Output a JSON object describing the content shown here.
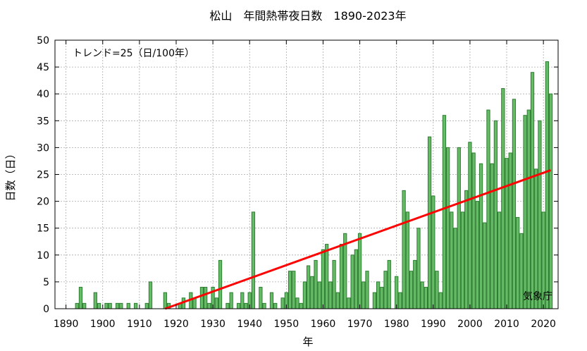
{
  "chart_data": {
    "type": "bar",
    "title": "松山　年間熱帯夜日数　1890-2023年",
    "xlabel": "年",
    "ylabel": "日数（日）",
    "trend_label": "トレンド=25（日/100年）",
    "credit": "気象庁",
    "xlim": [
      1887,
      2024
    ],
    "ylim": [
      0,
      50
    ],
    "x_ticks": [
      1890,
      1900,
      1910,
      1920,
      1930,
      1940,
      1950,
      1960,
      1970,
      1980,
      1990,
      2000,
      2010,
      2020
    ],
    "y_ticks": [
      0,
      5,
      10,
      15,
      20,
      25,
      30,
      35,
      40,
      45,
      50
    ],
    "grid": true,
    "colors": {
      "bar_fill": "#66bb66",
      "bar_edge": "#2e7d32",
      "trend": "#ff0000",
      "grid": "#aaaaaa"
    },
    "x": [
      1890,
      1891,
      1892,
      1893,
      1894,
      1895,
      1896,
      1897,
      1898,
      1899,
      1900,
      1901,
      1902,
      1903,
      1904,
      1905,
      1906,
      1907,
      1908,
      1909,
      1910,
      1911,
      1912,
      1913,
      1914,
      1915,
      1916,
      1917,
      1918,
      1919,
      1920,
      1921,
      1922,
      1923,
      1924,
      1925,
      1926,
      1927,
      1928,
      1929,
      1930,
      1931,
      1932,
      1933,
      1934,
      1935,
      1936,
      1937,
      1938,
      1939,
      1940,
      1941,
      1942,
      1943,
      1944,
      1945,
      1946,
      1947,
      1948,
      1949,
      1950,
      1951,
      1952,
      1953,
      1954,
      1955,
      1956,
      1957,
      1958,
      1959,
      1960,
      1961,
      1962,
      1963,
      1964,
      1965,
      1966,
      1967,
      1968,
      1969,
      1970,
      1971,
      1972,
      1973,
      1974,
      1975,
      1976,
      1977,
      1978,
      1979,
      1980,
      1981,
      1982,
      1983,
      1984,
      1985,
      1986,
      1987,
      1988,
      1989,
      1990,
      1991,
      1992,
      1993,
      1994,
      1995,
      1996,
      1997,
      1998,
      1999,
      2000,
      2001,
      2002,
      2003,
      2004,
      2005,
      2006,
      2007,
      2008,
      2009,
      2010,
      2011,
      2012,
      2013,
      2014,
      2015,
      2016,
      2017,
      2018,
      2019,
      2020,
      2021,
      2022,
      2023
    ],
    "values": [
      0,
      0,
      0,
      1,
      4,
      1,
      0,
      0,
      3,
      1,
      0,
      1,
      1,
      0,
      1,
      1,
      0,
      1,
      0,
      1,
      0,
      0,
      1,
      5,
      0,
      0,
      0,
      3,
      1,
      0,
      0,
      1,
      2,
      0,
      3,
      2,
      0,
      4,
      4,
      1,
      4,
      2,
      9,
      0,
      1,
      3,
      0,
      1,
      3,
      1,
      3,
      18,
      0,
      4,
      1,
      0,
      3,
      1,
      0,
      2,
      3,
      7,
      7,
      2,
      1,
      5,
      8,
      6,
      9,
      5,
      11,
      12,
      5,
      9,
      3,
      12,
      14,
      2,
      10,
      11,
      14,
      5,
      7,
      0,
      3,
      5,
      4,
      7,
      9,
      0,
      6,
      3,
      22,
      18,
      7,
      9,
      15,
      5,
      4,
      32,
      21,
      7,
      3,
      36,
      30,
      18,
      15,
      30,
      18,
      22,
      31,
      29,
      20,
      27,
      16,
      37,
      27,
      35,
      18,
      41,
      28,
      29,
      39,
      17,
      14,
      36,
      37,
      44,
      26,
      35,
      18,
      46,
      40,
      0
    ],
    "trend": {
      "x_start": 1917,
      "y_start": 0,
      "x_end": 2022,
      "y_end": 25.8
    }
  }
}
